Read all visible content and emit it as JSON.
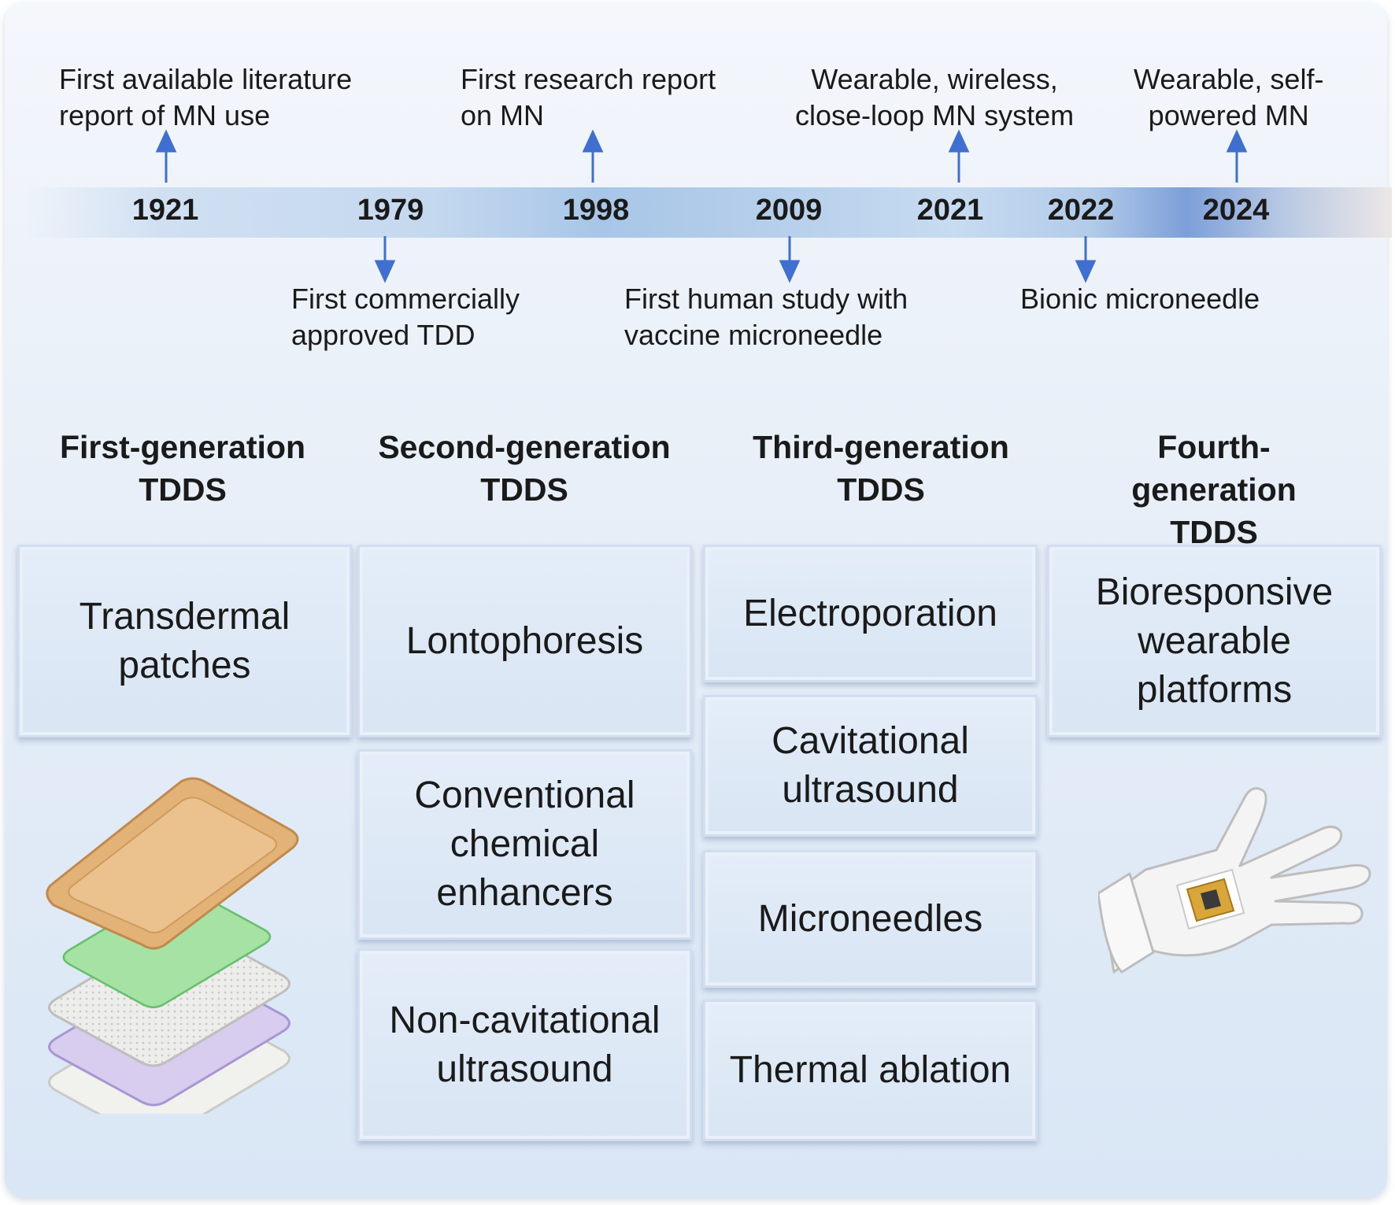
{
  "timeline": {
    "years": [
      "1921",
      "1979",
      "1998",
      "2009",
      "2021",
      "2022",
      "2024"
    ],
    "above": [
      {
        "year": "1921",
        "text": "First available literature\nreport of MN use"
      },
      {
        "year": "1998",
        "text": "First research report\non MN"
      },
      {
        "year": "2021",
        "text": "Wearable, wireless,\nclose-loop MN system"
      },
      {
        "year": "2024",
        "text": "Wearable, self-\npowered MN"
      }
    ],
    "below": [
      {
        "year": "1979",
        "text": "First commercially\napproved TDD"
      },
      {
        "year": "2009",
        "text": "First human study with\nvaccine microneedle"
      },
      {
        "year": "2022",
        "text": "Bionic microneedle"
      }
    ],
    "arrow_color": "#3f6fd1"
  },
  "generations": [
    {
      "title": "First-generation\nTDDS",
      "items": [
        "Transdermal\npatches"
      ]
    },
    {
      "title": "Second-generation\nTDDS",
      "items": [
        "Lontophoresis",
        "Conventional\nchemical\nenhancers",
        "Non-cavitational\nultrasound"
      ]
    },
    {
      "title": "Third-generation\nTDDS",
      "items": [
        "Electroporation",
        "Cavitational\nultrasound",
        "Microneedles",
        "Thermal ablation"
      ]
    },
    {
      "title": "Fourth-generation\nTDDS",
      "items": [
        "Bioresponsive\nwearable\nplatforms"
      ]
    }
  ],
  "illustrations": {
    "gen1": "layered-patch-illustration",
    "gen4": "hand-wearable-device-illustration"
  }
}
